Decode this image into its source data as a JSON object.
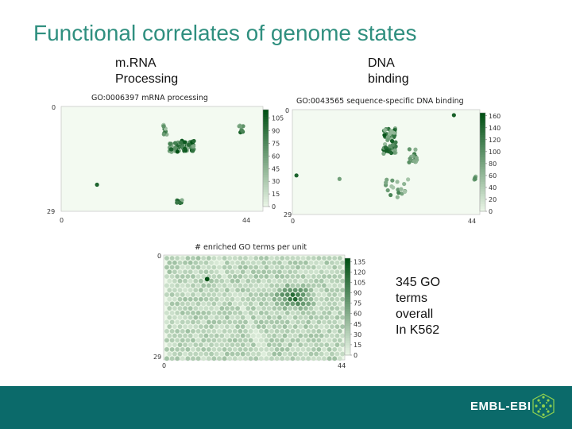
{
  "slide": {
    "title": "Functional correlates of genome states",
    "captions": {
      "left": [
        "m.RNA",
        "Processing"
      ],
      "right": [
        "DNA",
        "binding"
      ],
      "bottom": [
        "345 GO",
        "terms",
        "overall",
        "In K562"
      ]
    },
    "brand": "EMBL-EBI",
    "colors": {
      "title": "#2f8f7f",
      "footer": "#0b6a6a",
      "accent_green": "#1b6b2e"
    }
  },
  "chart_data": [
    {
      "type": "heatmap",
      "title": "GO:0006397 mRNA processing",
      "x_ticks": [
        "0",
        "44"
      ],
      "y_ticks": [
        "0",
        "29"
      ],
      "colorbar_ticks": [
        "105",
        "90",
        "75",
        "60",
        "45",
        "30",
        "15",
        "0"
      ],
      "colorbar_max": 115
    },
    {
      "type": "heatmap",
      "title": "GO:0043565 sequence-specific DNA binding",
      "x_ticks": [
        "0",
        "44"
      ],
      "y_ticks": [
        "0",
        "29"
      ],
      "colorbar_ticks": [
        "160",
        "140",
        "120",
        "100",
        "80",
        "60",
        "40",
        "20",
        "0"
      ],
      "colorbar_max": 165
    },
    {
      "type": "heatmap",
      "title": "# enriched GO terms per unit",
      "x_ticks": [
        "0",
        "44"
      ],
      "y_ticks": [
        "0",
        "29"
      ],
      "colorbar_ticks": [
        "135",
        "120",
        "105",
        "90",
        "75",
        "60",
        "45",
        "30",
        "15",
        "0"
      ],
      "colorbar_max": 140
    }
  ]
}
